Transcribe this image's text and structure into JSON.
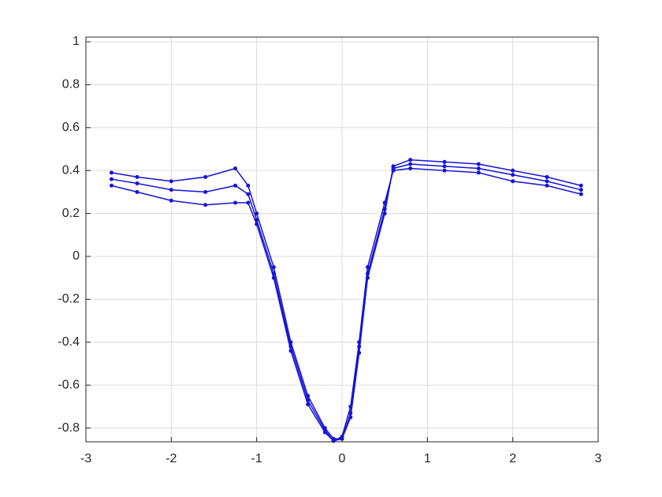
{
  "chart_data": {
    "type": "scatter-line",
    "xlim": [
      -3,
      3
    ],
    "ylim": [
      -0.864,
      1.022
    ],
    "xticks": [
      -3,
      -2,
      -1,
      0,
      1,
      2,
      3
    ],
    "yticks": [
      -0.8,
      -0.6,
      -0.4,
      -0.2,
      0,
      0.2,
      0.4,
      0.6,
      0.8,
      1
    ],
    "grid": true,
    "series": [
      {
        "color": "#1414d8",
        "x": [
          -2.7,
          -2.4,
          -2.0,
          -1.6,
          -1.25,
          -1.1,
          -1.0,
          -0.8,
          -0.6,
          -0.4,
          -0.2,
          -0.1,
          0.0,
          0.1,
          0.2,
          0.3,
          0.5,
          0.6,
          0.8,
          1.2,
          1.6,
          2.0,
          2.4,
          2.8
        ],
        "values": [
          0.39,
          0.37,
          0.35,
          0.37,
          0.41,
          0.33,
          0.2,
          -0.05,
          -0.4,
          -0.65,
          -0.8,
          -0.85,
          -0.85,
          -0.75,
          -0.45,
          -0.1,
          0.2,
          0.42,
          0.45,
          0.44,
          0.43,
          0.4,
          0.37,
          0.33
        ]
      },
      {
        "color": "#1414d8",
        "x": [
          -2.7,
          -2.4,
          -2.0,
          -1.6,
          -1.25,
          -1.1,
          -1.0,
          -0.8,
          -0.6,
          -0.4,
          -0.2,
          -0.1,
          0.0,
          0.1,
          0.2,
          0.3,
          0.5,
          0.6,
          0.8,
          1.2,
          1.6,
          2.0,
          2.4,
          2.8
        ],
        "values": [
          0.36,
          0.34,
          0.31,
          0.3,
          0.33,
          0.29,
          0.17,
          -0.08,
          -0.42,
          -0.67,
          -0.81,
          -0.86,
          -0.85,
          -0.73,
          -0.42,
          -0.08,
          0.22,
          0.41,
          0.43,
          0.42,
          0.41,
          0.38,
          0.35,
          0.31
        ]
      },
      {
        "color": "#1414d8",
        "x": [
          -2.7,
          -2.4,
          -2.0,
          -1.6,
          -1.25,
          -1.1,
          -1.0,
          -0.8,
          -0.6,
          -0.4,
          -0.2,
          -0.1,
          0.0,
          0.1,
          0.2,
          0.3,
          0.5,
          0.6,
          0.8,
          1.2,
          1.6,
          2.0,
          2.4,
          2.8
        ],
        "values": [
          0.33,
          0.3,
          0.26,
          0.24,
          0.25,
          0.25,
          0.15,
          -0.1,
          -0.44,
          -0.69,
          -0.82,
          -0.86,
          -0.84,
          -0.7,
          -0.4,
          -0.05,
          0.25,
          0.4,
          0.41,
          0.4,
          0.39,
          0.35,
          0.33,
          0.29
        ]
      }
    ]
  }
}
